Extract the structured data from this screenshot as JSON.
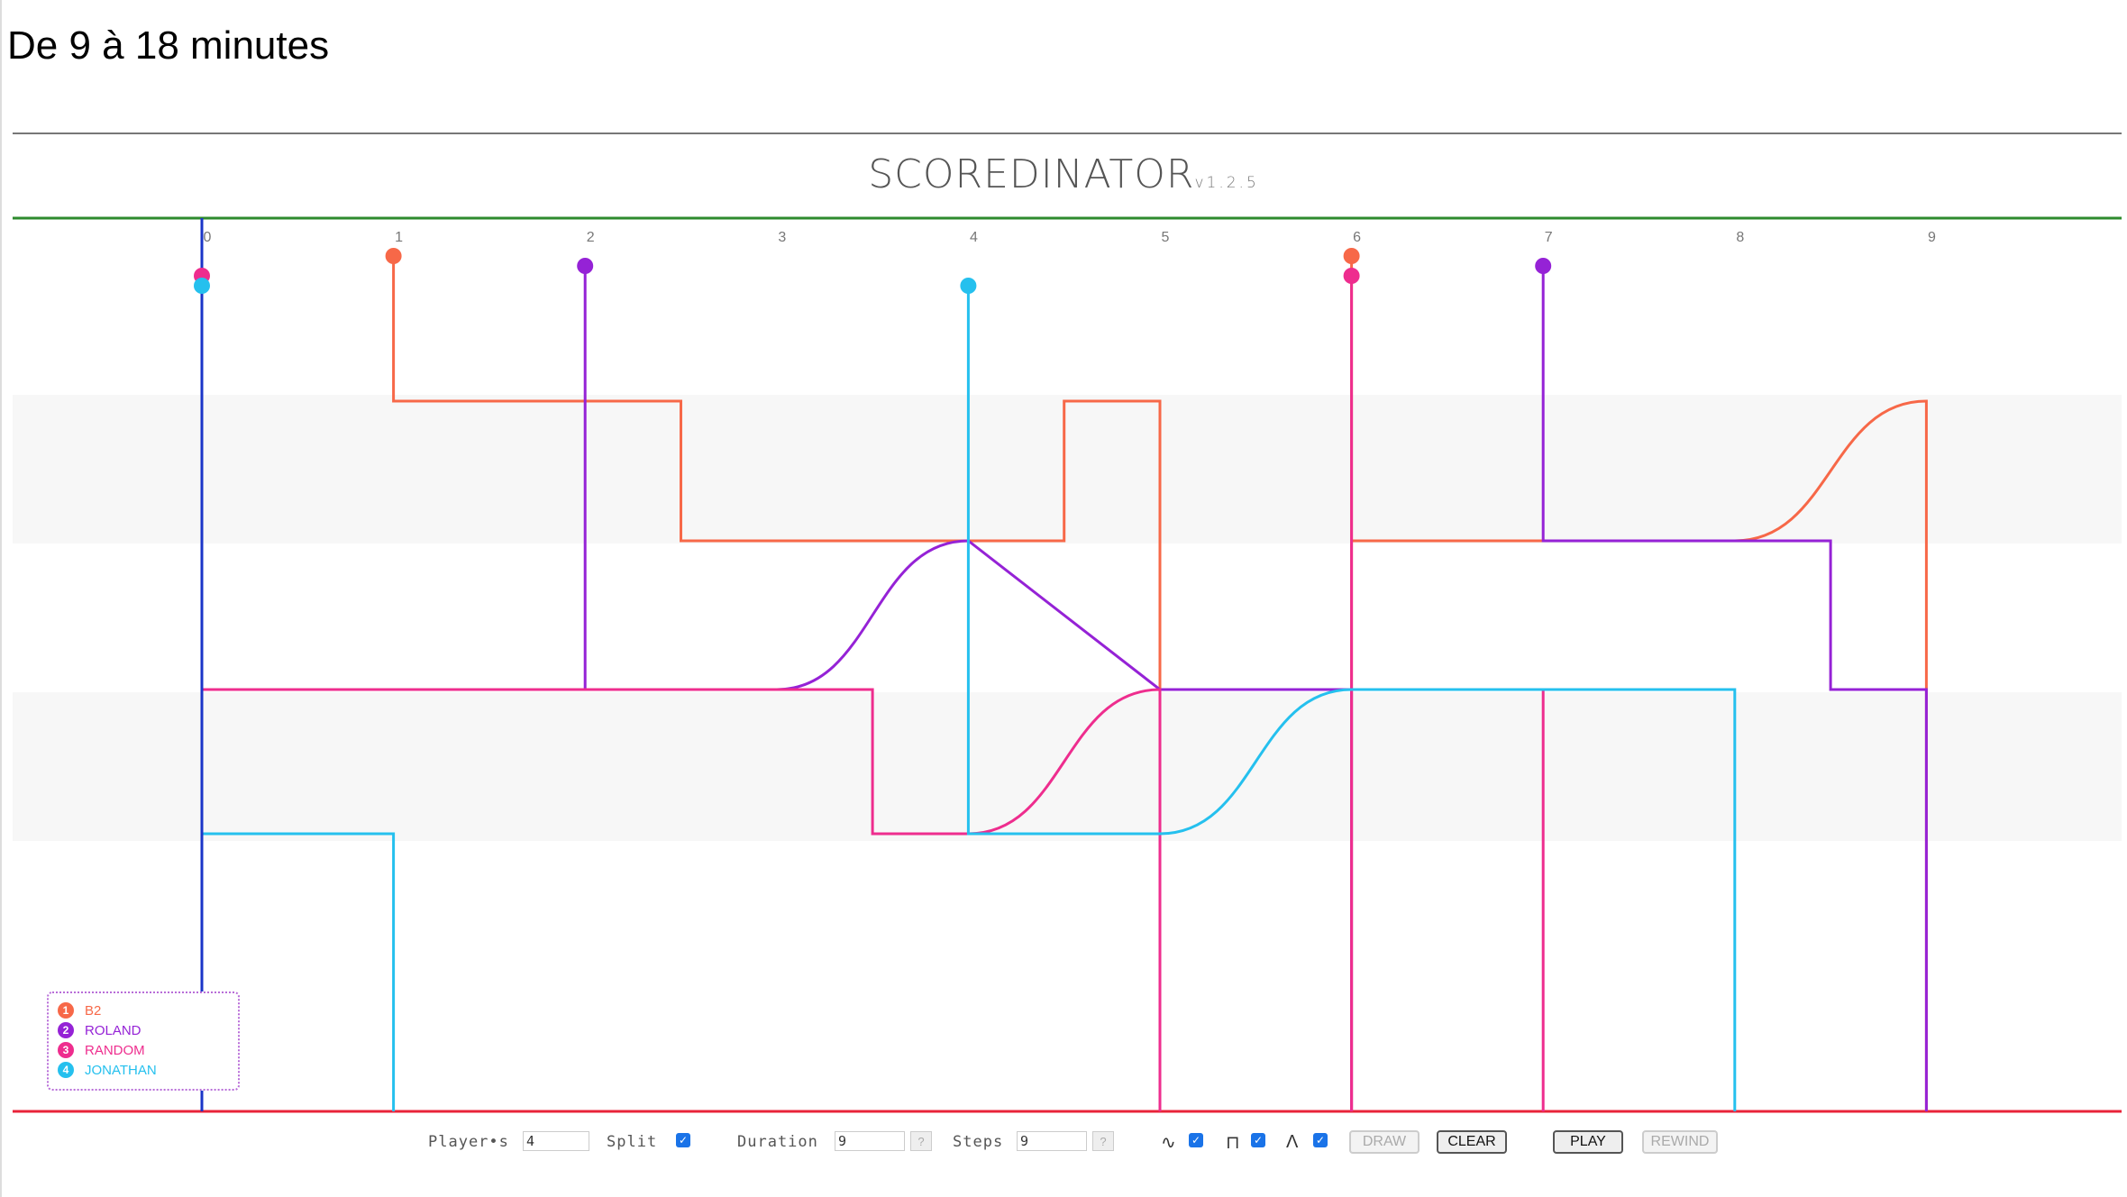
{
  "page": {
    "title": "De 9 à 18 minutes"
  },
  "app": {
    "name": "SCOREDINATOR",
    "version": "v1.2.5"
  },
  "timeline": {
    "ticks": [
      "0",
      "1",
      "2",
      "3",
      "4",
      "5",
      "6",
      "7",
      "8",
      "9"
    ]
  },
  "colors": {
    "B2": "#f76848",
    "ROLAND": "#9522d6",
    "RANDOM": "#ee2d8e",
    "JONATHAN": "#25c0ee",
    "playhead": "#1a35c8",
    "top_line": "#2e8b2e",
    "bottom_line": "#e8233a"
  },
  "legend": [
    {
      "number": "1",
      "name": "B2",
      "color": "#f76848"
    },
    {
      "number": "2",
      "name": "ROLAND",
      "color": "#9522d6"
    },
    {
      "number": "3",
      "name": "RANDOM",
      "color": "#ee2d8e"
    },
    {
      "number": "4",
      "name": "JONATHAN",
      "color": "#25c0ee"
    }
  ],
  "controls": {
    "players_label": "Player•s",
    "players_value": "4",
    "split_label": "Split",
    "split_checked": true,
    "duration_label": "Duration",
    "duration_value": "9",
    "steps_label": "Steps",
    "steps_value": "9",
    "help": "?",
    "curve_symbol": "∿",
    "step_symbol": "⊓",
    "ramp_symbol": "Λ",
    "curve_checked": true,
    "step_checked": true,
    "ramp_checked": true,
    "draw_label": "DRAW",
    "clear_label": "CLEAR",
    "play_label": "PLAY",
    "rewind_label": "REWIND"
  },
  "chart_data": {
    "type": "line",
    "x_label_ticks": [
      0,
      1,
      2,
      3,
      4,
      5,
      6,
      7,
      8,
      9
    ],
    "y_levels": 5,
    "series": [
      {
        "name": "B2",
        "color": "#f76848",
        "entries": [
          1,
          6
        ],
        "segments": [
          {
            "from": 1,
            "to": 2.5,
            "level": 1,
            "shape": "step"
          },
          {
            "from": 2.5,
            "to": 4.5,
            "level": 2,
            "shape": "step"
          },
          {
            "from": 4.5,
            "to": 5,
            "level": 1,
            "shape": "step"
          },
          {
            "from": 5,
            "to": 5,
            "level": 5,
            "shape": "drop"
          },
          {
            "from": 6,
            "to": 8,
            "level": 2,
            "shape": "flat"
          },
          {
            "from": 8,
            "to": 9,
            "level": 1,
            "shape": "curve"
          },
          {
            "from": 9,
            "to": 9,
            "level": 5,
            "shape": "drop"
          }
        ]
      },
      {
        "name": "ROLAND",
        "color": "#9522d6",
        "entries": [
          2,
          7
        ],
        "segments": [
          {
            "from": 2,
            "to": 3,
            "level": 3,
            "shape": "flat"
          },
          {
            "from": 3,
            "to": 4,
            "level": 2,
            "shape": "curve"
          },
          {
            "from": 4,
            "to": 5,
            "level": 3,
            "shape": "ramp"
          },
          {
            "from": 5,
            "to": 6,
            "level": 3,
            "shape": "flat"
          },
          {
            "from": 6,
            "to": 6,
            "level": 5,
            "shape": "drop"
          },
          {
            "from": 7,
            "to": 8.5,
            "level": 2,
            "shape": "flat"
          },
          {
            "from": 8.5,
            "to": 9,
            "level": 3,
            "shape": "step"
          },
          {
            "from": 9,
            "to": 9,
            "level": 5,
            "shape": "drop"
          }
        ]
      },
      {
        "name": "RANDOM",
        "color": "#ee2d8e",
        "entries": [
          0,
          6
        ],
        "segments": [
          {
            "from": 0,
            "to": 3.5,
            "level": 3,
            "shape": "flat"
          },
          {
            "from": 3.5,
            "to": 4,
            "level": 4,
            "shape": "step"
          },
          {
            "from": 4,
            "to": 5,
            "level": 3,
            "shape": "curve"
          },
          {
            "from": 5,
            "to": 5,
            "level": 5,
            "shape": "drop"
          },
          {
            "from": 6,
            "to": 7,
            "level": 3,
            "shape": "flat"
          },
          {
            "from": 7,
            "to": 7,
            "level": 5,
            "shape": "drop"
          }
        ]
      },
      {
        "name": "JONATHAN",
        "color": "#25c0ee",
        "entries": [
          0,
          4
        ],
        "segments": [
          {
            "from": 0,
            "to": 1,
            "level": 4,
            "shape": "flat"
          },
          {
            "from": 1,
            "to": 1,
            "level": 5,
            "shape": "drop"
          },
          {
            "from": 4,
            "to": 5,
            "level": 4,
            "shape": "flat"
          },
          {
            "from": 5,
            "to": 6,
            "level": 3,
            "shape": "curve"
          },
          {
            "from": 6,
            "to": 8,
            "level": 3,
            "shape": "flat"
          },
          {
            "from": 8,
            "to": 8,
            "level": 5,
            "shape": "drop"
          }
        ]
      }
    ]
  }
}
